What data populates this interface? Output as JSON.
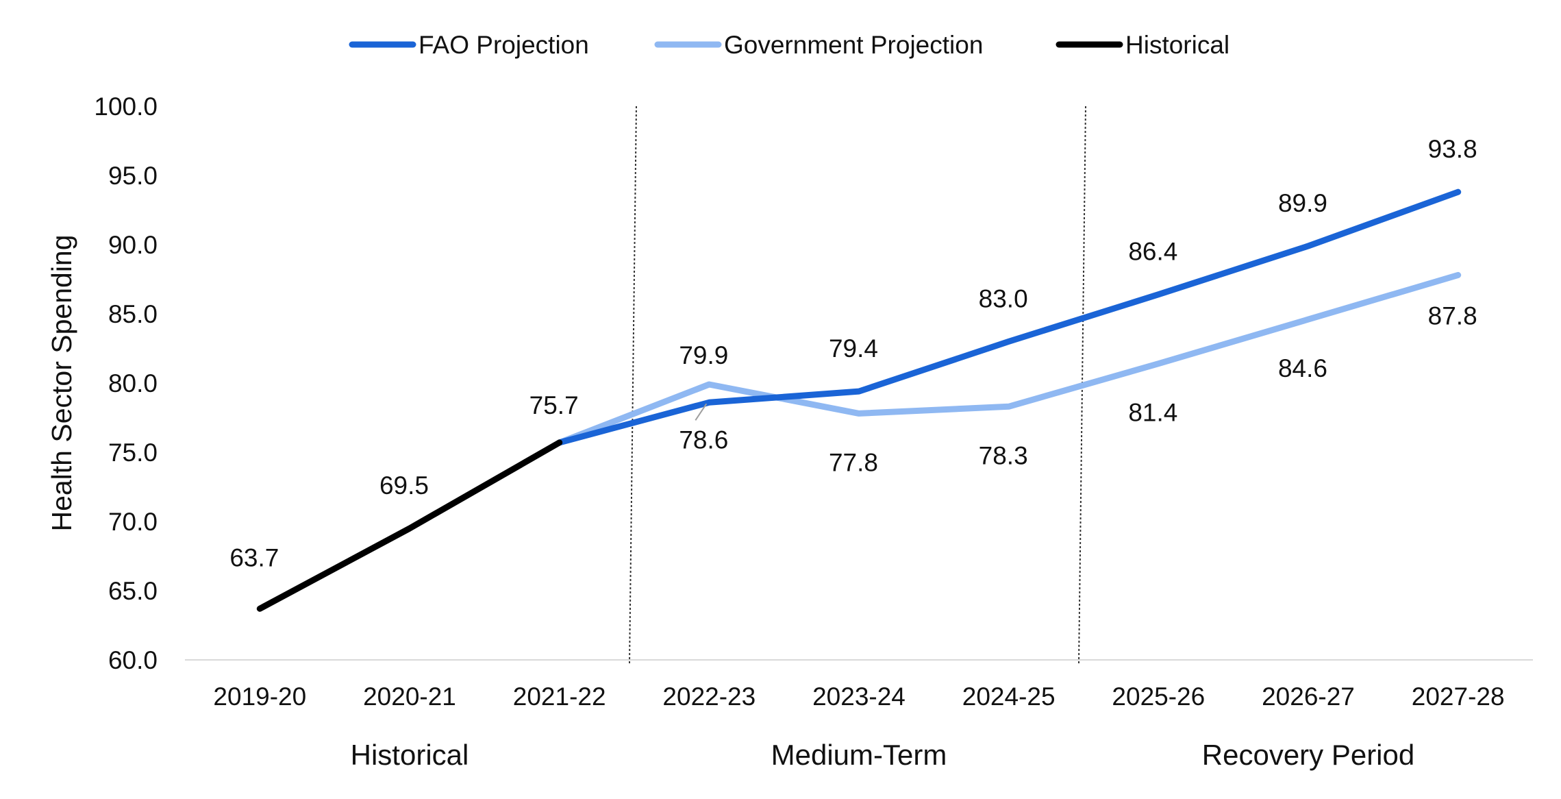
{
  "chart_data": {
    "type": "line",
    "categories": [
      "2019-20",
      "2020-21",
      "2021-22",
      "2022-23",
      "2023-24",
      "2024-25",
      "2025-26",
      "2026-27",
      "2027-28"
    ],
    "ylabel": "Health Sector Spending",
    "ylim": [
      60.0,
      100.0
    ],
    "yticks": [
      "60.0",
      "65.0",
      "70.0",
      "75.0",
      "80.0",
      "85.0",
      "90.0",
      "95.0",
      "100.0"
    ],
    "grid": false,
    "legend_position": "top-center",
    "series": [
      {
        "name": "FAO Projection",
        "color": "#1A64D6",
        "values": [
          null,
          null,
          75.7,
          78.6,
          79.4,
          83.0,
          86.4,
          89.9,
          93.8
        ],
        "labels": [
          null,
          null,
          null,
          "78.6",
          "79.4",
          "83.0",
          "86.4",
          "89.9",
          "93.8"
        ]
      },
      {
        "name": "Government Projection",
        "color": "#8FB8F2",
        "values": [
          null,
          null,
          75.7,
          79.9,
          77.8,
          78.3,
          81.4,
          84.6,
          87.8
        ],
        "labels": [
          null,
          null,
          null,
          "79.9",
          "77.8",
          "78.3",
          "81.4",
          "84.6",
          "87.8"
        ]
      },
      {
        "name": "Historical",
        "color": "#000000",
        "values": [
          63.7,
          69.5,
          75.7,
          null,
          null,
          null,
          null,
          null,
          null
        ],
        "labels": [
          "63.7",
          "69.5",
          "75.7",
          null,
          null,
          null,
          null,
          null,
          null
        ]
      }
    ],
    "periods": [
      {
        "label": "Historical",
        "start": 0,
        "end": 2
      },
      {
        "label": "Medium-Term",
        "start": 3,
        "end": 5
      },
      {
        "label": "Recovery Period",
        "start": 6,
        "end": 8
      }
    ],
    "dividers_between": [
      2,
      5
    ]
  }
}
